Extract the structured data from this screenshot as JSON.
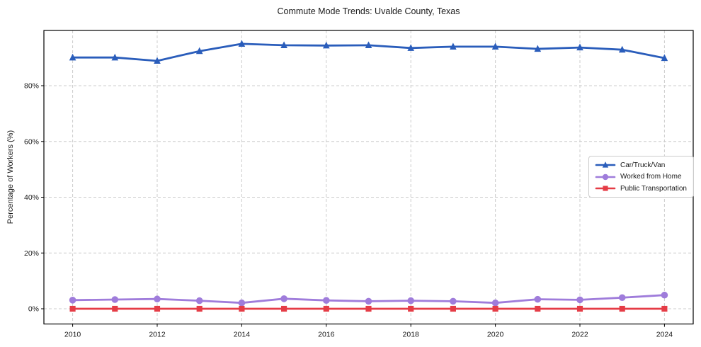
{
  "chart_data": {
    "type": "line",
    "title": "Commute Mode Trends: Uvalde County, Texas",
    "xlabel": "",
    "ylabel": "Percentage of Workers (%)",
    "x": [
      2010,
      2011,
      2012,
      2013,
      2014,
      2015,
      2016,
      2017,
      2018,
      2019,
      2020,
      2021,
      2022,
      2023,
      2024
    ],
    "series": [
      {
        "name": "Car/Truck/Van",
        "marker": "triangle",
        "color": "#2a5dbb",
        "values": [
          90.1,
          90.1,
          88.9,
          92.4,
          95.0,
          94.5,
          94.4,
          94.5,
          93.5,
          94.0,
          94.0,
          93.2,
          93.7,
          92.9,
          89.9
        ]
      },
      {
        "name": "Worked from Home",
        "marker": "circle",
        "color": "#9f7cdb",
        "values": [
          3.1,
          3.3,
          3.5,
          2.9,
          2.1,
          3.6,
          3.0,
          2.7,
          2.9,
          2.7,
          2.1,
          3.4,
          3.2,
          4.0,
          4.9
        ]
      },
      {
        "name": "Public Transportation",
        "marker": "square",
        "color": "#e53c46",
        "values": [
          0.0,
          0.0,
          0.0,
          0.0,
          0.0,
          0.0,
          0.0,
          0.0,
          0.0,
          0.0,
          0.0,
          0.0,
          0.0,
          0.0,
          0.0
        ]
      }
    ],
    "xtick_values": [
      2010,
      2012,
      2014,
      2016,
      2018,
      2020,
      2022,
      2024
    ],
    "xtick_labels": [
      "2010",
      "2012",
      "2014",
      "2016",
      "2018",
      "2020",
      "2022",
      "2024"
    ],
    "ytick_values": [
      0,
      20,
      40,
      60,
      80
    ],
    "ytick_labels": [
      "0%",
      "20%",
      "40%",
      "60%",
      "80%"
    ],
    "xlim": [
      2009.32,
      2024.68
    ],
    "ylim": [
      -5.46,
      99.81
    ],
    "grid": true,
    "legend_position": "center right"
  },
  "colors": {
    "grid": "#cccccc",
    "spine": "#000000",
    "tick_text": "#1a1a1a",
    "background": "#ffffff"
  }
}
